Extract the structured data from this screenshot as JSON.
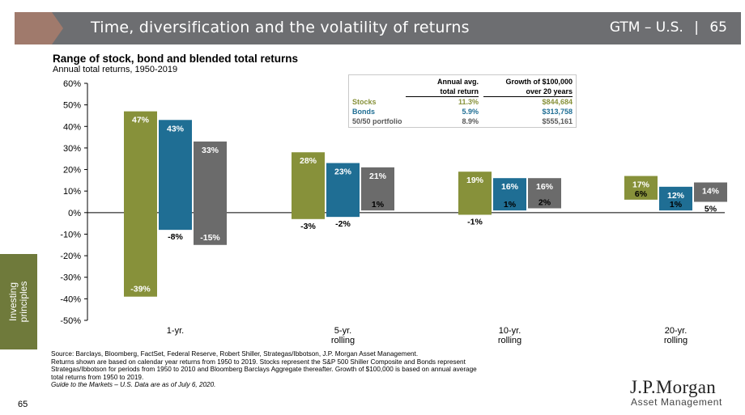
{
  "header": {
    "title": "Time, diversification and the volatility of returns",
    "section": "GTM – U.S.",
    "separator": "|",
    "page": "65",
    "banner_color": "#6d6e71",
    "chevron_color": "#a07a6c"
  },
  "side_tab": {
    "label_line1": "Investing",
    "label_line2": "principles",
    "color": "#6f7a3b"
  },
  "table": {
    "header_col1_line1": "Annual avg.",
    "header_col1_line2": "total return",
    "header_col2_line1": "Growth of $100,000",
    "header_col2_line2": "over 20 years",
    "rows": [
      {
        "label": "Stocks",
        "avg": "11.3%",
        "growth": "$844,684",
        "color": "#87913a"
      },
      {
        "label": "Bonds",
        "avg": "5.9%",
        "growth": "$313,758",
        "color": "#1f6e94"
      },
      {
        "label": "50/50 portfolio",
        "avg": "8.9%",
        "growth": "$555,161",
        "color": "#595959"
      }
    ]
  },
  "chart_data": {
    "type": "bar",
    "title": "Range of stock, bond and blended total returns",
    "subtitle": "Annual total returns, 1950-2019",
    "categories": [
      "1-yr.",
      "5-yr. rolling",
      "10-yr. rolling",
      "20-yr. rolling"
    ],
    "category_lines": [
      [
        "1-yr."
      ],
      [
        "5-yr.",
        "rolling"
      ],
      [
        "10-yr.",
        "rolling"
      ],
      [
        "20-yr.",
        "rolling"
      ]
    ],
    "ylim": [
      -50,
      60
    ],
    "yticks": [
      60,
      50,
      40,
      30,
      20,
      10,
      0,
      -10,
      -20,
      -30,
      -40,
      -50
    ],
    "ytick_labels": [
      "60%",
      "50%",
      "40%",
      "30%",
      "20%",
      "10%",
      "0%",
      "-10%",
      "-20%",
      "-30%",
      "-40%",
      "-50%"
    ],
    "series": [
      {
        "name": "Stocks",
        "color": "#87913a",
        "high": [
          47,
          28,
          19,
          17
        ],
        "low": [
          -39,
          -3,
          -1,
          6
        ],
        "high_labels": [
          "47%",
          "28%",
          "19%",
          "17%"
        ],
        "low_labels": [
          "-39%",
          "-3%",
          "-1%",
          "6%"
        ]
      },
      {
        "name": "Bonds",
        "color": "#1f6e94",
        "high": [
          43,
          23,
          16,
          12
        ],
        "low": [
          -8,
          -2,
          1,
          1
        ],
        "high_labels": [
          "43%",
          "23%",
          "16%",
          "12%"
        ],
        "low_labels": [
          "-8%",
          "-2%",
          "1%",
          "1%"
        ]
      },
      {
        "name": "50/50 portfolio",
        "color": "#6b6b6b",
        "high": [
          33,
          21,
          16,
          14
        ],
        "low": [
          -15,
          1,
          2,
          5
        ],
        "high_labels": [
          "33%",
          "21%",
          "16%",
          "14%"
        ],
        "low_labels": [
          "-15%",
          "1%",
          "2%",
          "5%"
        ]
      }
    ]
  },
  "footnote": {
    "line1": "Source: Barclays, Bloomberg, FactSet, Federal Reserve, Robert Shiller, Strategas/Ibbotson, J.P. Morgan Asset Management.",
    "line2": "Returns shown are based on calendar year returns from 1950 to 2019. Stocks represent the S&P 500 Shiller Composite and Bonds represent",
    "line3": "Strategas/Ibbotson for periods from 1950 to 2010 and Bloomberg Barclays Aggregate thereafter. Growth of $100,000 is based on annual average",
    "line4": "total returns from 1950 to 2019.",
    "line5": "Guide to the Markets – U.S. Data are as of July 6, 2020."
  },
  "footer": {
    "page_number": "65",
    "logo": "J.P.Morgan",
    "logo_sub": "Asset Management"
  }
}
